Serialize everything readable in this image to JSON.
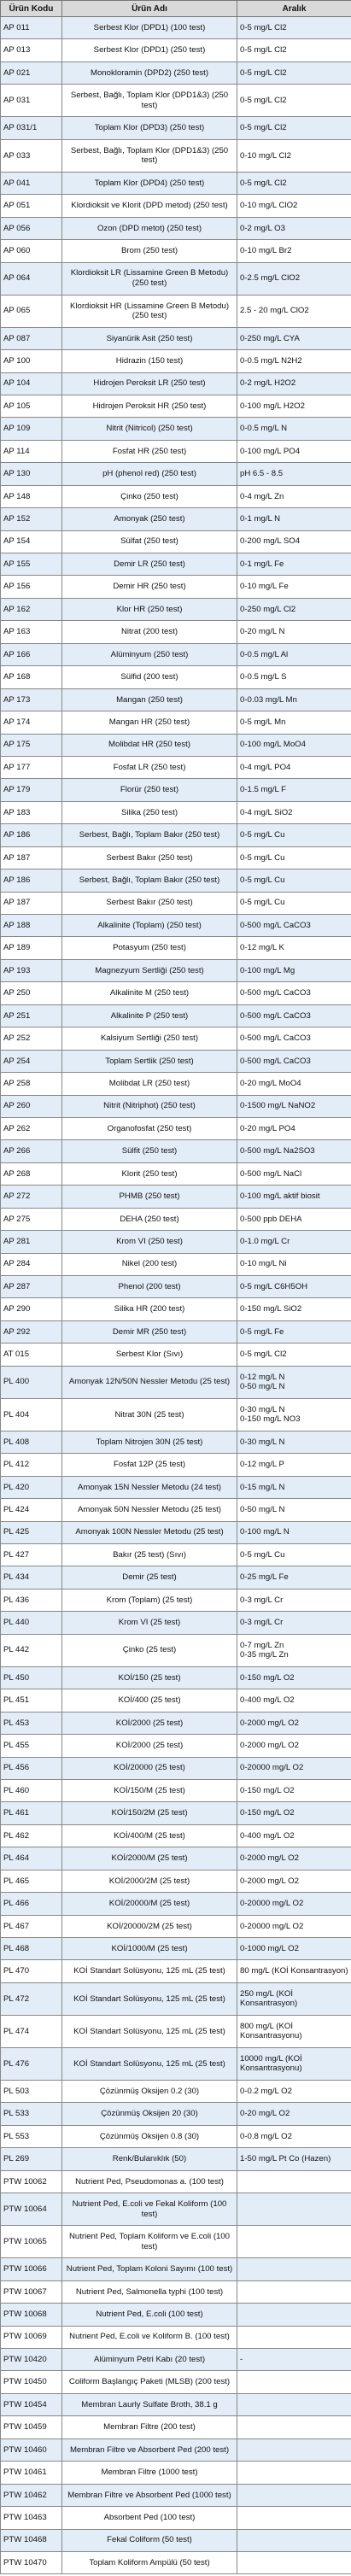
{
  "headers": [
    "Ürün Kodu",
    "Ürün Adı",
    "Aralık"
  ],
  "rows": [
    [
      "AP 011",
      "Serbest Klor (DPD1) (100 test)",
      "0-5 mg/L Cl2"
    ],
    [
      "AP 013",
      "Serbest Klor (DPD1) (250 test)",
      "0-5 mg/L Cl2"
    ],
    [
      "AP 021",
      "Monokloramin (DPD2) (250 test)",
      "0-5 mg/L Cl2"
    ],
    [
      "AP 031",
      "Serbest, Bağlı, Toplam Klor (DPD1&3) (250 test)",
      "0-5 mg/L Cl2"
    ],
    [
      "AP 031/1",
      "Toplam Klor (DPD3) (250 test)",
      "0-5 mg/L Cl2"
    ],
    [
      "AP 033",
      "Serbest, Bağlı, Toplam Klor (DPD1&3) (250 test)",
      "0-10 mg/L Cl2"
    ],
    [
      "AP 041",
      "Toplam Klor (DPD4) (250 test)",
      "0-5 mg/L Cl2"
    ],
    [
      "AP 051",
      "Klordioksit ve Klorit (DPD metod) (250 test)",
      "0-10 mg/L ClO2"
    ],
    [
      "AP 056",
      "Ozon (DPD metot) (250 test)",
      "0-2 mg/L O3"
    ],
    [
      "AP 060",
      "Brom (250 test)",
      "0-10 mg/L Br2"
    ],
    [
      "AP 064",
      "Klordioksit LR (Lissamine Green B Metodu) (250 test)",
      "0-2.5 mg/L ClO2"
    ],
    [
      "AP 065",
      "Klordioksit HR (Lissamine Green B Metodu) (250 test)",
      "2.5 - 20 mg/L ClO2"
    ],
    [
      "AP 087",
      "Siyanürik Asit (250 test)",
      "0-250 mg/L CYA"
    ],
    [
      "AP 100",
      "Hidrazin (150 test)",
      "0-0.5 mg/L N2H2"
    ],
    [
      "AP 104",
      "Hidrojen Peroksit LR (250 test)",
      "0-2 mg/L H2O2"
    ],
    [
      "AP 105",
      "Hidrojen Peroksit HR (250 test)",
      "0-100 mg/L H2O2"
    ],
    [
      "AP 109",
      "Nitrit (Nitricol) (250 test)",
      "0-0.5 mg/L N"
    ],
    [
      "AP 114",
      "Fosfat HR (250 test)",
      "0-100 mg/L PO4"
    ],
    [
      "AP 130",
      "pH (phenol red) (250 test)",
      "pH 6.5 - 8.5"
    ],
    [
      "AP 148",
      "Çinko (250 test)",
      "0-4 mg/L Zn"
    ],
    [
      "AP 152",
      "Amonyak (250 test)",
      "0-1 mg/L N"
    ],
    [
      "AP 154",
      "Sülfat (250 test)",
      "0-200 mg/L SO4"
    ],
    [
      "AP 155",
      "Demir LR (250 test)",
      "0-1 mg/L Fe"
    ],
    [
      "AP 156",
      "Demir HR (250 test)",
      "0-10 mg/L Fe"
    ],
    [
      "AP 162",
      "Klor HR (250 test)",
      "0-250 mg/L Cl2"
    ],
    [
      "AP 163",
      "Nitrat (200 test)",
      "0-20 mg/L N"
    ],
    [
      "AP 166",
      "Alüminyum (250 test)",
      "0-0.5 mg/L Al"
    ],
    [
      "AP 168",
      "Sülfid (200 test)",
      "0-0.5 mg/L S"
    ],
    [
      "AP 173",
      "Mangan (250 test)",
      "0-0.03 mg/L Mn"
    ],
    [
      "AP 174",
      "Mangan HR (250 test)",
      "0-5 mg/L Mn"
    ],
    [
      "AP 175",
      "Molibdat HR (250 test)",
      "0-100 mg/L MoO4"
    ],
    [
      "AP 177",
      "Fosfat LR (250 test)",
      "0-4 mg/L PO4"
    ],
    [
      "AP 179",
      "Florür (250 test)",
      "0-1.5 mg/L F"
    ],
    [
      "AP 183",
      "Silika (250 test)",
      "0-4 mg/L SiO2"
    ],
    [
      "AP 186",
      "Serbest, Bağlı, Toplam Bakır (250 test)",
      "0-5 mg/L Cu"
    ],
    [
      "AP 187",
      "Serbest Bakır (250 test)",
      "0-5 mg/L Cu"
    ],
    [
      "AP 186",
      "Serbest, Bağlı, Toplam Bakır (250 test)",
      "0-5 mg/L Cu"
    ],
    [
      "AP 187",
      "Serbest Bakır (250 test)",
      "0-5 mg/L Cu"
    ],
    [
      "AP 188",
      "Alkalinite (Toplam) (250 test)",
      "0-500 mg/L CaCO3"
    ],
    [
      "AP 189",
      "Potasyum (250 test)",
      "0-12 mg/L K"
    ],
    [
      "AP 193",
      "Magnezyum Sertliği (250 test)",
      "0-100 mg/L Mg"
    ],
    [
      "AP 250",
      "Alkalinite M (250 test)",
      "0-500 mg/L CaCO3"
    ],
    [
      "AP 251",
      "Alkalinite P (250 test)",
      "0-500 mg/L CaCO3"
    ],
    [
      "AP 252",
      "Kalsiyum Sertliği (250 test)",
      "0-500 mg/L CaCO3"
    ],
    [
      "AP 254",
      "Toplam Sertlik (250 test)",
      "0-500 mg/L CaCO3"
    ],
    [
      "AP 258",
      "Molibdat LR (250 test)",
      "0-20 mg/L MoO4"
    ],
    [
      "AP 260",
      "Nitrit (Nitriphot) (250 test)",
      "0-1500 mg/L NaNO2"
    ],
    [
      "AP 262",
      "Organofosfat (250 test)",
      "0-20 mg/L PO4"
    ],
    [
      "AP 266",
      "Sülfit (250 test)",
      "0-500 mg/L Na2SO3"
    ],
    [
      "AP 268",
      "Klorit (250 test)",
      "0-500 mg/L NaCl"
    ],
    [
      "AP 272",
      "PHMB (250 test)",
      "0-100 mg/L aktif biosit"
    ],
    [
      "AP 275",
      "DEHA (250 test)",
      "0-500 ppb DEHA"
    ],
    [
      "AP 281",
      "Krom VI (250 test)",
      "0-1.0 mg/L Cr"
    ],
    [
      "AP 284",
      "Nikel (200 test)",
      "0-10 mg/L Ni"
    ],
    [
      "AP 287",
      "Phenol (200 test)",
      "0-5 mg/L C6H5OH"
    ],
    [
      "AP 290",
      "Silika HR (200 test)",
      "0-150 mg/L SiO2"
    ],
    [
      "AP 292",
      "Demir MR (250 test)",
      "0-5 mg/L Fe"
    ],
    [
      "AT 015",
      "Serbest Klor (Sıvı)",
      "0-5 mg/L Cl2"
    ],
    [
      "PL 400",
      "Amonyak 12N/50N Nessler Metodu (25 test)",
      "0-12 mg/L N\n0-50 mg/L N"
    ],
    [
      "PL 404",
      "Nitrat 30N (25 test)",
      "0-30 mg/L N\n0-150 mg/L NO3"
    ],
    [
      "PL 408",
      "Toplam Nitrojen 30N (25 test)",
      "0-30 mg/L N"
    ],
    [
      "PL 412",
      "Fosfat 12P (25 test)",
      "0-12 mg/L P"
    ],
    [
      "PL 420",
      "Amonyak 15N Nessler Metodu (24 test)",
      "0-15 mg/L N"
    ],
    [
      "PL 424",
      "Amonyak 50N Nessler Metodu (25 test)",
      "0-50 mg/L N"
    ],
    [
      "PL 425",
      "Amonyak 100N Nessler Metodu (25 test)",
      "0-100 mg/L N"
    ],
    [
      "PL 427",
      "Bakır (25 test) (Sıvı)",
      "0-5 mg/L Cu"
    ],
    [
      "PL 434",
      "Demir (25 test)",
      "0-25 mg/L Fe"
    ],
    [
      "PL 436",
      "Krom (Toplam) (25 test)",
      "0-3 mg/L Cr"
    ],
    [
      "PL 440",
      "Krom VI (25 test)",
      "0-3 mg/L Cr"
    ],
    [
      "PL 442",
      "Çinko (25 test)",
      "0-7 mg/L Zn\n0-35 mg/L Zn"
    ],
    [
      "PL 450",
      "KOİ/150 (25 test)",
      "0-150 mg/L O2"
    ],
    [
      "PL 451",
      "KOİ/400 (25 test)",
      "0-400 mg/L O2"
    ],
    [
      "PL 453",
      "KOİ/2000 (25 test)",
      "0-2000 mg/L O2"
    ],
    [
      "PL 455",
      "KOİ/2000 (25 test)",
      "0-2000 mg/L O2"
    ],
    [
      "PL 456",
      "KOİ/20000 (25 test)",
      "0-20000 mg/L O2"
    ],
    [
      "PL 460",
      "KOİ/150/M (25 test)",
      "0-150 mg/L O2"
    ],
    [
      "PL 461",
      "KOİ/150/2M (25 test)",
      "0-150 mg/L O2"
    ],
    [
      "PL 462",
      "KOİ/400/M (25 test)",
      "0-400 mg/L O2"
    ],
    [
      "PL 464",
      "KOİ/2000/M (25 test)",
      "0-2000 mg/L O2"
    ],
    [
      "PL 465",
      "KOİ/2000/2M (25 test)",
      "0-2000 mg/L O2"
    ],
    [
      "PL 466",
      "KOİ/20000/M (25 test)",
      "0-20000 mg/L O2"
    ],
    [
      "PL 467",
      "KOİ/20000/2M (25 test)",
      "0-20000 mg/L O2"
    ],
    [
      "PL 468",
      "KOİ/1000/M (25 test)",
      "0-1000 mg/L O2"
    ],
    [
      "PL 470",
      "KOİ Standart Solüsyonu, 125 mL (25 test)",
      "80 mg/L (KOİ Konsantrasyon)"
    ],
    [
      "PL 472",
      "KOİ Standart Solüsyonu, 125 mL (25 test)",
      "250 mg/L (KOİ Konsantrasyon)"
    ],
    [
      "PL 474",
      "KOİ Standart Solüsyonu, 125 mL (25 test)",
      "800 mg/L (KOİ Konsantrasyonu)"
    ],
    [
      "PL 476",
      "KOİ Standart Solüsyonu, 125 mL (25 test)",
      "10000 mg/L (KOİ Konsantrasyonu)"
    ],
    [
      "PL 503",
      "Çözünmüş Oksijen 0.2 (30)",
      "0-0.2 mg/L O2"
    ],
    [
      "PL 533",
      "Çözünmüş Oksijen 20 (30)",
      "0-20 mg/L O2"
    ],
    [
      "PL 553",
      "Çözünmüş Oksijen 0.8 (30)",
      "0-0.8 mg/L O2"
    ],
    [
      "PL 269",
      "Renk/Bulanıklık (50)",
      "1-50 mg/L Pt Co (Hazen)"
    ],
    [
      "PTW 10062",
      "Nutrient Ped, Pseudomonas a. (100 test)",
      ""
    ],
    [
      "PTW 10064",
      "Nutrient Ped, E.coli ve Fekal Koliform (100 test)",
      ""
    ],
    [
      "PTW 10065",
      "Nutrient Ped, Toplam Koliform ve E.coli (100 test)",
      ""
    ],
    [
      "PTW 10066",
      "Nutrient Ped, Toplam Koloni Sayımı (100 test)",
      ""
    ],
    [
      "PTW 10067",
      "Nutrient Ped, Salmonella typhi (100 test)",
      ""
    ],
    [
      "PTW 10068",
      "Nutrient Ped, E.coli (100 test)",
      ""
    ],
    [
      "PTW 10069",
      "Nutrient Ped, E.coli ve Koliform B. (100 test)",
      ""
    ],
    [
      "PTW 10420",
      "Alüminyum Petri Kabı (20 test)",
      "-"
    ],
    [
      "PTW 10450",
      "Coliform Başlangıç Paketi (MLSB) (200 test)",
      ""
    ],
    [
      "PTW 10454",
      "Membran Laurly Sulfate Broth, 38.1 g",
      ""
    ],
    [
      "PTW 10459",
      "Membran Filtre (200 test)",
      ""
    ],
    [
      "PTW 10460",
      "Membran Filtre ve Absorbent Ped (200 test)",
      ""
    ],
    [
      "PTW 10461",
      "Membran Filtre (1000 test)",
      ""
    ],
    [
      "PTW 10462",
      "Membran Filtre ve Absorbent Ped (1000 test)",
      ""
    ],
    [
      "PTW 10463",
      "Absorbent Ped (100 test)",
      ""
    ],
    [
      "PTW 10468",
      "Fekal Coliform (50 test)",
      ""
    ],
    [
      "PTW 10470",
      "Toplam Koliform Ampülü (50 test)",
      ""
    ]
  ]
}
